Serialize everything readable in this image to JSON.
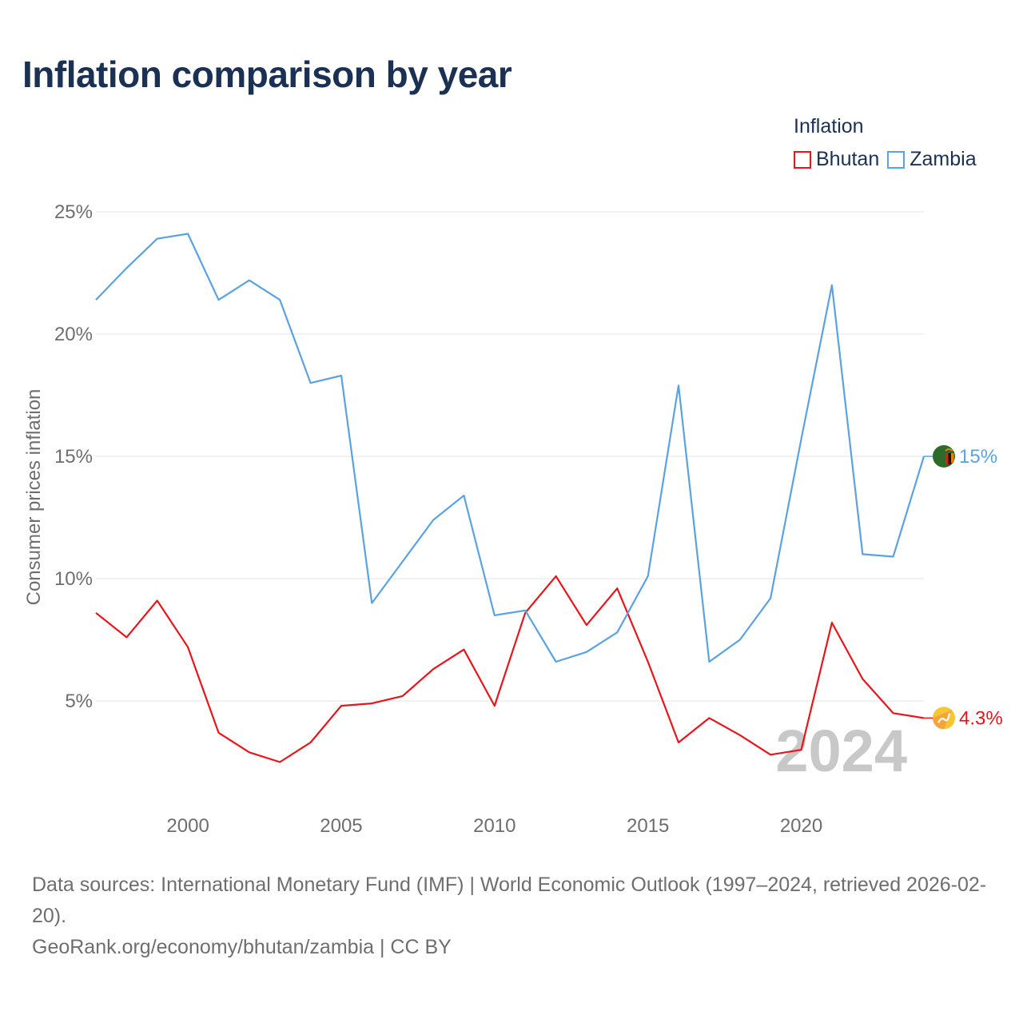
{
  "title": "Inflation comparison by year",
  "legend": {
    "title": "Inflation",
    "items": [
      {
        "name": "Bhutan",
        "color": "#e8151b"
      },
      {
        "name": "Zambia",
        "color": "#5ba3e0"
      }
    ]
  },
  "chart_data": {
    "type": "line",
    "title": "Inflation comparison by year",
    "ylabel": "Consumer prices inflation",
    "xlabel": "",
    "ylim": [
      0,
      25
    ],
    "xlim": [
      1997,
      2024
    ],
    "y_ticks": [
      5,
      10,
      15,
      20,
      25
    ],
    "y_tick_labels": [
      "5%",
      "10%",
      "15%",
      "20%",
      "25%"
    ],
    "x_ticks": [
      2000,
      2005,
      2010,
      2015,
      2020
    ],
    "x_tick_labels": [
      "2000",
      "2005",
      "2010",
      "2015",
      "2020"
    ],
    "grid": true,
    "watermark": "2024",
    "x": [
      1997,
      1998,
      1999,
      2000,
      2001,
      2002,
      2003,
      2004,
      2005,
      2006,
      2007,
      2008,
      2009,
      2010,
      2011,
      2012,
      2013,
      2014,
      2015,
      2016,
      2017,
      2018,
      2019,
      2020,
      2021,
      2022,
      2023,
      2024
    ],
    "series": [
      {
        "name": "Bhutan",
        "color": "#e8151b",
        "end_label": "4.3%",
        "end_icon": "bhutan-flag-icon",
        "values": [
          8.6,
          7.6,
          9.1,
          7.2,
          3.7,
          2.9,
          2.5,
          3.3,
          4.8,
          4.9,
          5.2,
          6.3,
          7.1,
          4.8,
          8.6,
          10.1,
          8.1,
          9.6,
          6.6,
          3.3,
          4.3,
          3.6,
          2.8,
          3.0,
          8.2,
          5.9,
          4.5,
          4.3
        ]
      },
      {
        "name": "Zambia",
        "color": "#5ba3e0",
        "end_label": "15%",
        "end_icon": "zambia-flag-icon",
        "values": [
          21.4,
          22.7,
          23.9,
          24.1,
          21.4,
          22.2,
          21.4,
          18.0,
          18.3,
          9.0,
          10.7,
          12.4,
          13.4,
          8.5,
          8.7,
          6.6,
          7.0,
          7.8,
          10.1,
          17.9,
          6.6,
          7.5,
          9.2,
          15.7,
          22.0,
          11.0,
          10.9,
          15.0
        ]
      }
    ]
  },
  "footer": {
    "sources": "Data sources: International Monetary Fund (IMF) | World Economic Outlook (1997–2024, retrieved 2026-02-20).",
    "credit": "GeoRank.org/economy/bhutan/zambia | CC BY"
  }
}
